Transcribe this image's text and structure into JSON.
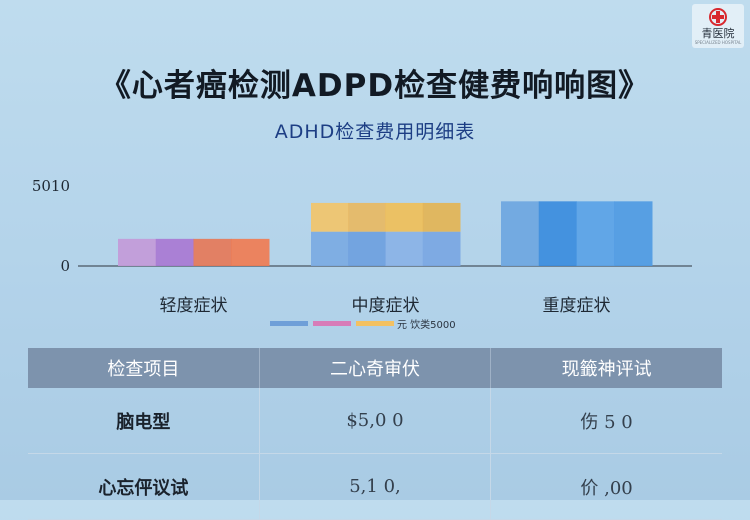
{
  "logo": {
    "name": "青医院",
    "sub": "SPECIALIZED HOSPITAL",
    "cross_color": "#d8282e"
  },
  "title": "《心者癌检测ADPD检查健费响响图》",
  "subtitle": "ADHD检查费用明细表",
  "chart_data": {
    "type": "bar",
    "categories": [
      "轻度症状",
      "中度症状",
      "重度症状"
    ],
    "y_ticks": [
      "5010",
      "0"
    ],
    "ylim": [
      0,
      5010
    ],
    "values": [
      1700,
      3950,
      4050
    ],
    "split": [
      0,
      2150,
      0
    ],
    "colors": {
      "mild": [
        "#c39ad8",
        "#a978d2",
        "#e67858",
        "#f07c52"
      ],
      "moderate_lower": [
        "#7baae2",
        "#6e9fde",
        "#8ab2e6",
        "#7aa6e2"
      ],
      "moderate_upper": [
        "#f2c46a",
        "#e8b862",
        "#f0bf58",
        "#e4b454"
      ],
      "severe": [
        "#6ea6e0",
        "#3b8cdd",
        "#5aa2e6",
        "#4f9ae2"
      ]
    },
    "legend": [
      {
        "label": "",
        "color": "#6f9fd8"
      },
      {
        "label": "",
        "color": "#d77cb8"
      },
      {
        "label": "元 饮类5000",
        "color": "#f3c162"
      }
    ],
    "grid": false
  },
  "table": {
    "headers": [
      "检查项目",
      "二心奇审伏",
      "现籤神评试"
    ],
    "rows": [
      [
        "脑电型",
        "$5,0 0",
        "伤 5 0"
      ],
      [
        "心忘伻议试",
        "5,1 0,",
        "价 ,00"
      ]
    ]
  }
}
